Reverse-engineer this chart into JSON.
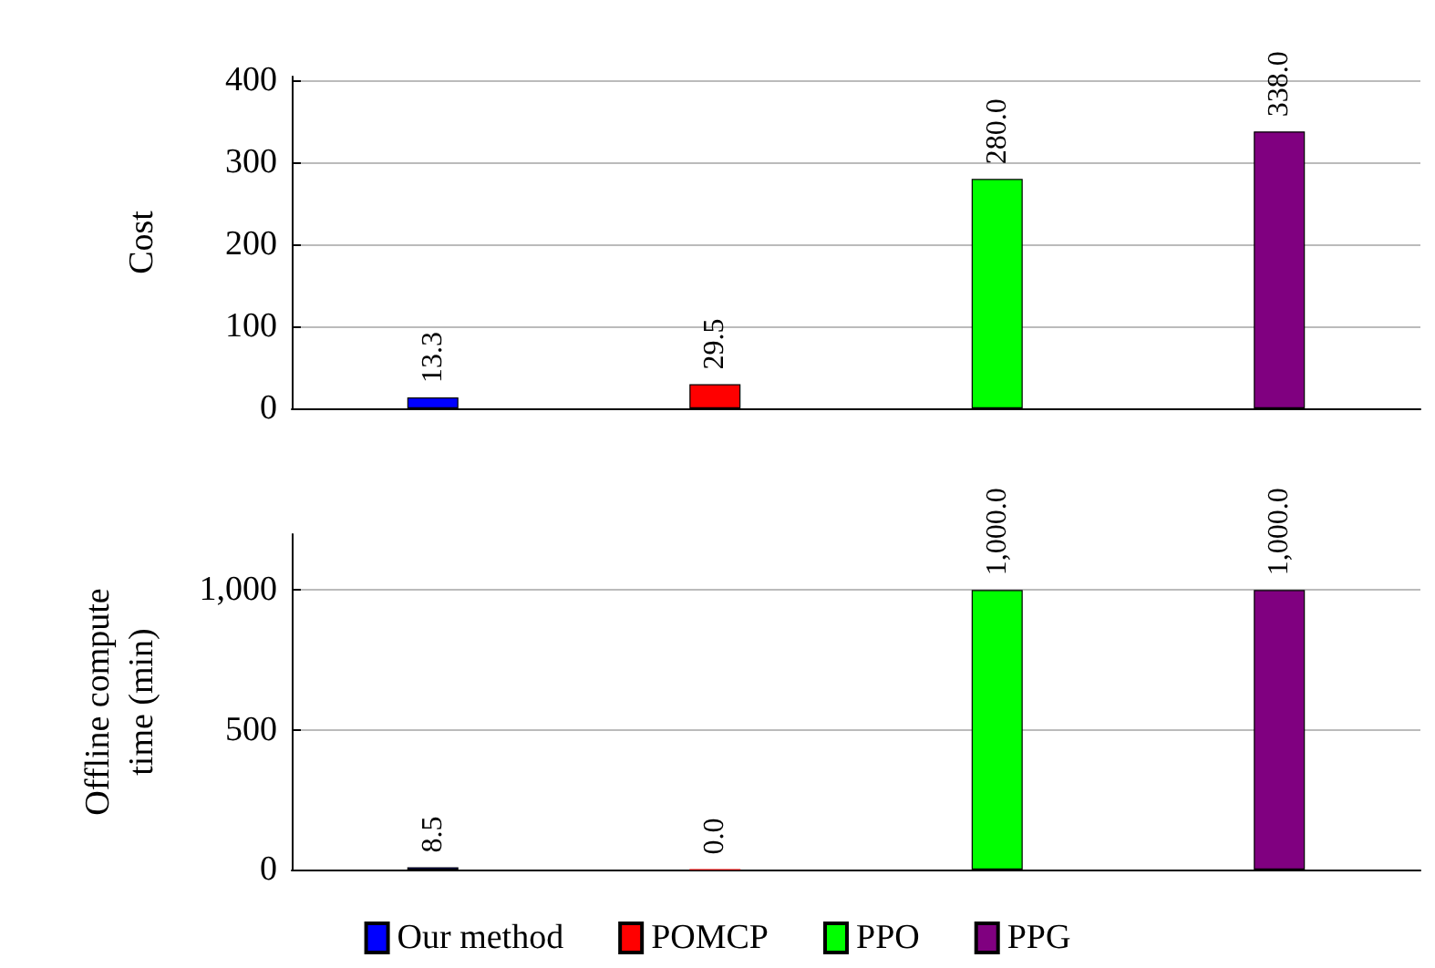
{
  "chart_data": [
    {
      "type": "bar",
      "ylabel": "Cost",
      "categories": [
        null,
        null,
        null,
        null
      ],
      "ylim": [
        0,
        405
      ],
      "yticks": [
        0,
        100,
        200,
        300,
        400
      ],
      "grid": "y",
      "legend": false,
      "series": [
        {
          "color": "#0000ff",
          "values": [
            13.3,
            null,
            null,
            null
          ],
          "value_labels": [
            "13.3",
            null,
            null,
            null
          ]
        },
        {
          "color": "#ff0000",
          "values": [
            null,
            29.5,
            null,
            null
          ],
          "value_labels": [
            null,
            "29.5",
            null,
            null
          ]
        },
        {
          "color": "#00ff00",
          "values": [
            null,
            null,
            280,
            null
          ],
          "value_labels": [
            null,
            null,
            "280.0",
            null
          ]
        },
        {
          "color": "#800080",
          "values": [
            null,
            null,
            null,
            338
          ],
          "value_labels": [
            null,
            null,
            null,
            "338.0"
          ]
        }
      ]
    },
    {
      "type": "bar",
      "ylabel": "Offline compute time (min)",
      "categories": [
        null,
        null,
        null,
        null
      ],
      "ylim": [
        0,
        1200
      ],
      "yticks": [
        0,
        500,
        {
          "value": 1000,
          "label": "1,000"
        }
      ],
      "grid": "y",
      "legend": "bottom",
      "series": [
        {
          "name": "Our method",
          "color": "#0000ff",
          "values": [
            8.5,
            null,
            null,
            null
          ],
          "value_labels": [
            "8.5",
            null,
            null,
            null
          ]
        },
        {
          "name": "POMCP",
          "color": "#ff0000",
          "values": [
            null,
            0,
            null,
            null
          ],
          "value_labels": [
            null,
            "0.0",
            null,
            null
          ]
        },
        {
          "name": "PPO",
          "color": "#00ff00",
          "values": [
            null,
            null,
            1000,
            null
          ],
          "value_labels": [
            null,
            null,
            "1,000.0",
            null
          ]
        },
        {
          "name": "PPG",
          "color": "#800080",
          "values": [
            null,
            null,
            null,
            1000
          ],
          "value_labels": [
            null,
            null,
            null,
            "1,000.0"
          ]
        }
      ]
    }
  ]
}
